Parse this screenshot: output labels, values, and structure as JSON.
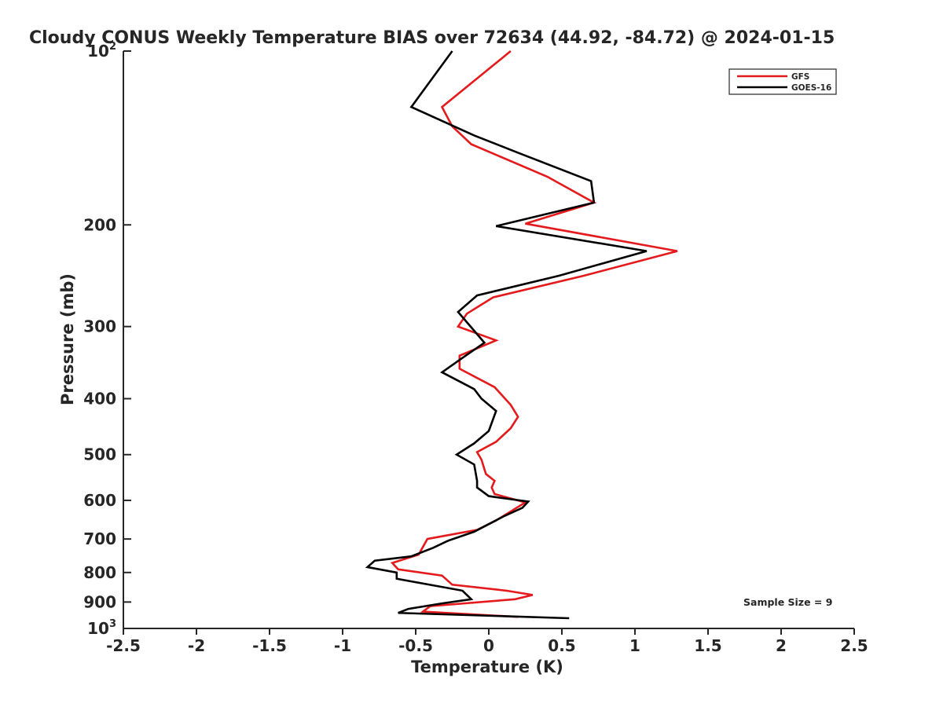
{
  "chart_data": {
    "type": "line",
    "title": "Cloudy CONUS Weekly Temperature BIAS over 72634 (44.92, -84.72) @ 2024-01-15",
    "xlabel": "Temperature (K)",
    "ylabel": "Pressure (mb)",
    "xlim": [
      -2.5,
      2.5
    ],
    "ylim": [
      100,
      1000
    ],
    "y_scale": "log",
    "y_reversed": true,
    "grid": false,
    "legend_position": "top-right",
    "x_ticks": [
      {
        "value": -2.5,
        "label": "-2.5"
      },
      {
        "value": -2,
        "label": "-2"
      },
      {
        "value": -1.5,
        "label": "-1.5"
      },
      {
        "value": -1,
        "label": "-1"
      },
      {
        "value": -0.5,
        "label": "-0.5"
      },
      {
        "value": 0,
        "label": "0"
      },
      {
        "value": 0.5,
        "label": "0.5"
      },
      {
        "value": 1,
        "label": "1"
      },
      {
        "value": 1.5,
        "label": "1.5"
      },
      {
        "value": 2,
        "label": "2"
      },
      {
        "value": 2.5,
        "label": "2.5"
      }
    ],
    "y_ticks": [
      {
        "value": 200,
        "label": "200"
      },
      {
        "value": 300,
        "label": "300"
      },
      {
        "value": 400,
        "label": "400"
      },
      {
        "value": 500,
        "label": "500"
      },
      {
        "value": 600,
        "label": "600"
      },
      {
        "value": 700,
        "label": "700"
      },
      {
        "value": 800,
        "label": "800"
      },
      {
        "value": 900,
        "label": "900"
      }
    ],
    "y_ticks_power": [
      {
        "value": 100,
        "base": "10",
        "exp": "2"
      },
      {
        "value": 1000,
        "base": "10",
        "exp": "3"
      }
    ],
    "annotation": "Sample Size = 9",
    "series": [
      {
        "name": "GFS",
        "color": "#e41a1c",
        "points": [
          {
            "x": 0.15,
            "y": 100
          },
          {
            "x": -0.32,
            "y": 125
          },
          {
            "x": -0.25,
            "y": 135
          },
          {
            "x": -0.12,
            "y": 145
          },
          {
            "x": 0.4,
            "y": 165
          },
          {
            "x": 0.72,
            "y": 183
          },
          {
            "x": 0.25,
            "y": 199
          },
          {
            "x": 1.29,
            "y": 222
          },
          {
            "x": 0.65,
            "y": 245
          },
          {
            "x": 0.03,
            "y": 267
          },
          {
            "x": -0.15,
            "y": 285
          },
          {
            "x": -0.21,
            "y": 300
          },
          {
            "x": 0.05,
            "y": 317
          },
          {
            "x": -0.2,
            "y": 337
          },
          {
            "x": -0.2,
            "y": 355
          },
          {
            "x": 0.04,
            "y": 382
          },
          {
            "x": 0.15,
            "y": 410
          },
          {
            "x": 0.2,
            "y": 430
          },
          {
            "x": 0.15,
            "y": 450
          },
          {
            "x": 0.05,
            "y": 475
          },
          {
            "x": -0.08,
            "y": 495
          },
          {
            "x": -0.05,
            "y": 510
          },
          {
            "x": -0.02,
            "y": 540
          },
          {
            "x": 0.04,
            "y": 555
          },
          {
            "x": 0.02,
            "y": 570
          },
          {
            "x": 0.04,
            "y": 585
          },
          {
            "x": 0.25,
            "y": 605
          },
          {
            "x": 0.05,
            "y": 650
          },
          {
            "x": -0.08,
            "y": 675
          },
          {
            "x": -0.42,
            "y": 700
          },
          {
            "x": -0.48,
            "y": 745
          },
          {
            "x": -0.66,
            "y": 770
          },
          {
            "x": -0.62,
            "y": 790
          },
          {
            "x": -0.32,
            "y": 810
          },
          {
            "x": -0.25,
            "y": 840
          },
          {
            "x": 0.12,
            "y": 860
          },
          {
            "x": 0.3,
            "y": 875
          },
          {
            "x": 0.18,
            "y": 890
          },
          {
            "x": -0.4,
            "y": 915
          },
          {
            "x": -0.45,
            "y": 935
          },
          {
            "x": 0.2,
            "y": 955
          }
        ]
      },
      {
        "name": "GOES-16",
        "color": "#000000",
        "points": [
          {
            "x": -0.25,
            "y": 100
          },
          {
            "x": -0.53,
            "y": 125
          },
          {
            "x": -0.1,
            "y": 140
          },
          {
            "x": 0.2,
            "y": 150
          },
          {
            "x": 0.7,
            "y": 168
          },
          {
            "x": 0.72,
            "y": 183
          },
          {
            "x": 0.05,
            "y": 201
          },
          {
            "x": 1.08,
            "y": 222
          },
          {
            "x": 0.48,
            "y": 245
          },
          {
            "x": -0.08,
            "y": 265
          },
          {
            "x": -0.21,
            "y": 283
          },
          {
            "x": -0.1,
            "y": 305
          },
          {
            "x": -0.03,
            "y": 320
          },
          {
            "x": -0.18,
            "y": 340
          },
          {
            "x": -0.32,
            "y": 360
          },
          {
            "x": -0.1,
            "y": 385
          },
          {
            "x": -0.05,
            "y": 400
          },
          {
            "x": 0.05,
            "y": 420
          },
          {
            "x": 0.0,
            "y": 455
          },
          {
            "x": -0.1,
            "y": 478
          },
          {
            "x": -0.22,
            "y": 500
          },
          {
            "x": -0.1,
            "y": 520
          },
          {
            "x": -0.08,
            "y": 555
          },
          {
            "x": -0.08,
            "y": 570
          },
          {
            "x": 0.0,
            "y": 590
          },
          {
            "x": 0.27,
            "y": 603
          },
          {
            "x": 0.23,
            "y": 618
          },
          {
            "x": 0.1,
            "y": 640
          },
          {
            "x": -0.1,
            "y": 680
          },
          {
            "x": -0.28,
            "y": 705
          },
          {
            "x": -0.38,
            "y": 725
          },
          {
            "x": -0.53,
            "y": 750
          },
          {
            "x": -0.78,
            "y": 763
          },
          {
            "x": -0.83,
            "y": 783
          },
          {
            "x": -0.63,
            "y": 800
          },
          {
            "x": -0.63,
            "y": 820
          },
          {
            "x": -0.18,
            "y": 860
          },
          {
            "x": -0.12,
            "y": 890
          },
          {
            "x": -0.32,
            "y": 905
          },
          {
            "x": -0.55,
            "y": 925
          },
          {
            "x": -0.62,
            "y": 940
          },
          {
            "x": 0.55,
            "y": 960
          }
        ]
      }
    ]
  }
}
